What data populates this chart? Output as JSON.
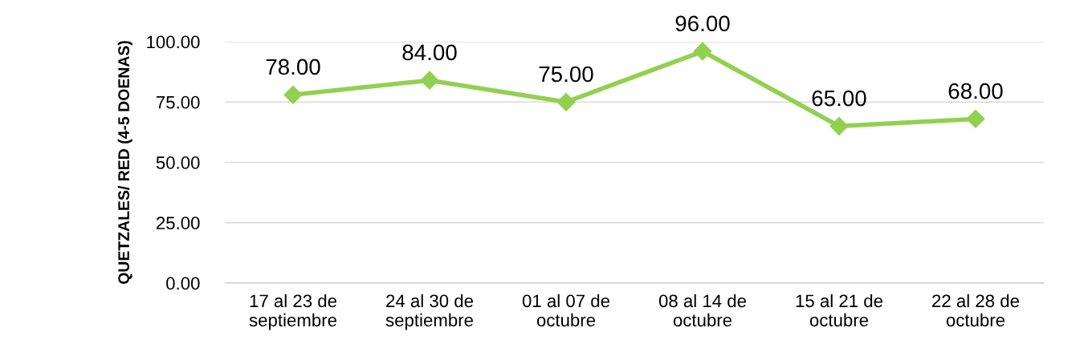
{
  "chart_data": {
    "type": "line",
    "ylabel": "QUETZALES/ RED (4-5 DOENAS)",
    "categories": [
      "17 al 23 de\nseptiembre",
      "24 al 30 de\nseptiembre",
      "01 al 07 de\noctubre",
      "08 al 14 de\noctubre",
      "15 al 21 de\noctubre",
      "22 al 28 de\noctubre"
    ],
    "series": [
      {
        "color": "#92d050",
        "values": [
          78,
          84,
          75,
          96,
          65,
          68
        ]
      }
    ],
    "ylim": [
      0,
      100
    ],
    "yticks": [
      {
        "value": 0,
        "label": "0.00"
      },
      {
        "value": 25,
        "label": "25.00"
      },
      {
        "value": 50,
        "label": "50.00"
      },
      {
        "value": 75,
        "label": "75.00"
      },
      {
        "value": 100,
        "label": "100.00"
      }
    ],
    "value_labels": [
      "78.00",
      "84.00",
      "75.00",
      "96.00",
      "65.00",
      "68.00"
    ],
    "grid": "y",
    "marker": "diamond",
    "line_style": "solid",
    "legend": false
  }
}
